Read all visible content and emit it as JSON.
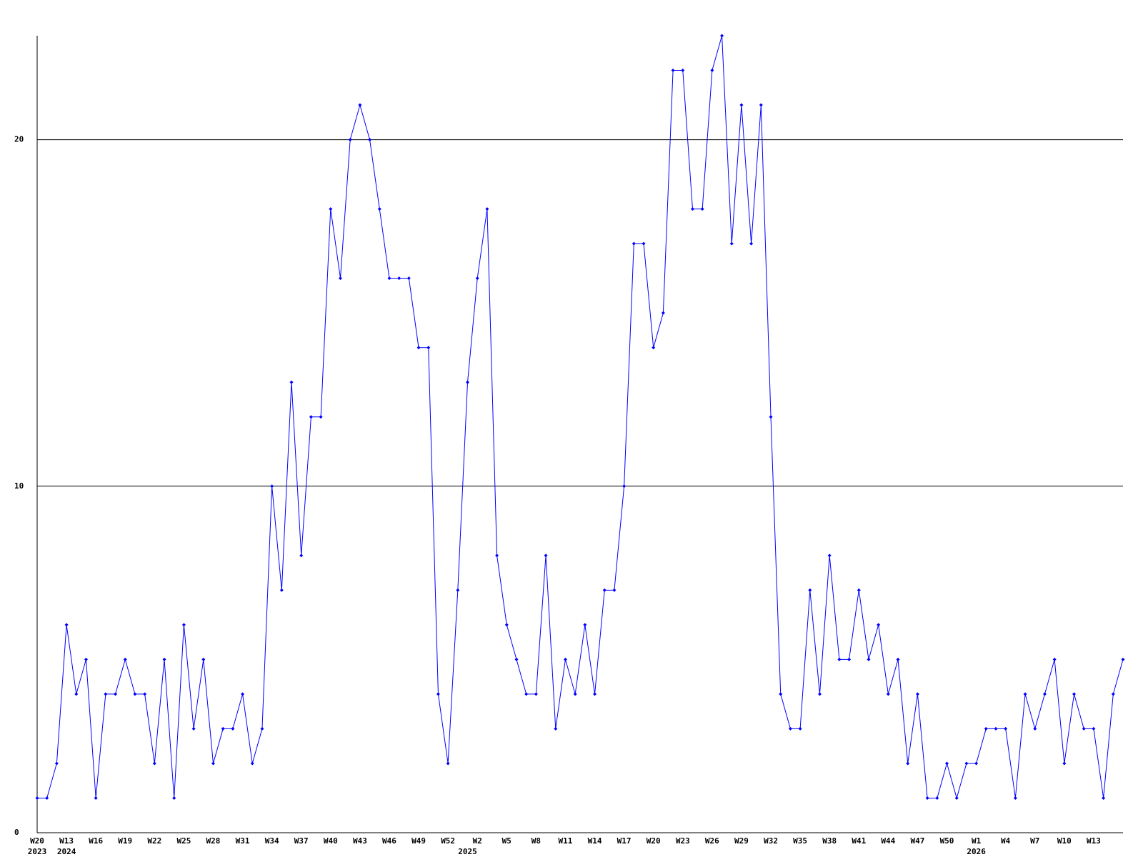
{
  "chart_data": {
    "type": "line",
    "categories": [
      "W20",
      null,
      null,
      "W13",
      null,
      null,
      "W16",
      null,
      null,
      "W19",
      null,
      null,
      "W22",
      null,
      null,
      "W25",
      null,
      null,
      "W28",
      null,
      null,
      "W31",
      null,
      null,
      "W34",
      null,
      null,
      "W37",
      null,
      null,
      "W40",
      null,
      null,
      "W43",
      null,
      null,
      "W46",
      null,
      null,
      "W49",
      null,
      null,
      "W52",
      null,
      null,
      "W2",
      null,
      null,
      "W5",
      null,
      null,
      "W8",
      null,
      null,
      "W11",
      null,
      null,
      "W14",
      null,
      null,
      "W17",
      null,
      null,
      "W20",
      null,
      null,
      "W23",
      null,
      null,
      "W26",
      null,
      null,
      "W29",
      null,
      null,
      "W32",
      null,
      null,
      "W35",
      null,
      null,
      "W38",
      null,
      null,
      "W41",
      null,
      null,
      "W44",
      null,
      null,
      "W47",
      null,
      null,
      "W50",
      null,
      null,
      "W1",
      null,
      null,
      "W4",
      null,
      null,
      "W7",
      null,
      null,
      "W10",
      null,
      null,
      "W13",
      null,
      null,
      null
    ],
    "year_labels": [
      "2023",
      null,
      null,
      "2024",
      null,
      null,
      null,
      null,
      null,
      null,
      null,
      null,
      null,
      null,
      null,
      null,
      null,
      null,
      null,
      null,
      null,
      null,
      null,
      null,
      null,
      null,
      null,
      null,
      null,
      null,
      null,
      null,
      null,
      null,
      null,
      null,
      null,
      null,
      null,
      null,
      null,
      null,
      null,
      null,
      "2025",
      null,
      null,
      null,
      null,
      null,
      null,
      null,
      null,
      null,
      null,
      null,
      null,
      null,
      null,
      null,
      null,
      null,
      null,
      null,
      null,
      null,
      null,
      null,
      null,
      null,
      null,
      null,
      null,
      null,
      null,
      null,
      null,
      null,
      null,
      null,
      null,
      null,
      null,
      null,
      null,
      null,
      null,
      null,
      null,
      null,
      null,
      null,
      null,
      null,
      null,
      null,
      "2026",
      null,
      null,
      null,
      null,
      null,
      null,
      null,
      null,
      null,
      null,
      null,
      null,
      null,
      null,
      null
    ],
    "series": [
      {
        "color": "#0000ff",
        "values": [
          1,
          1,
          2,
          6,
          4,
          5,
          1,
          4,
          4,
          5,
          4,
          4,
          2,
          5,
          1,
          6,
          3,
          5,
          2,
          3,
          3,
          4,
          2,
          3,
          10,
          7,
          13,
          8,
          12,
          12,
          18,
          16,
          20,
          21,
          20,
          18,
          16,
          16,
          16,
          14,
          14,
          4,
          2,
          7,
          13,
          16,
          18,
          8,
          6,
          5,
          4,
          4,
          8,
          3,
          5,
          4,
          6,
          4,
          7,
          7,
          10,
          17,
          17,
          14,
          15,
          22,
          22,
          18,
          18,
          22,
          23,
          17,
          21,
          17,
          21,
          12,
          4,
          3,
          3,
          7,
          4,
          8,
          5,
          5,
          7,
          5,
          6,
          4,
          5,
          2,
          4,
          1,
          1,
          2,
          1,
          2,
          2,
          3,
          3,
          3,
          1,
          4,
          3,
          4,
          5,
          2,
          4,
          3,
          3,
          1,
          4,
          5
        ]
      }
    ],
    "ylim": [
      0,
      23
    ],
    "yticks": [
      0,
      10,
      20
    ],
    "grid": true
  }
}
